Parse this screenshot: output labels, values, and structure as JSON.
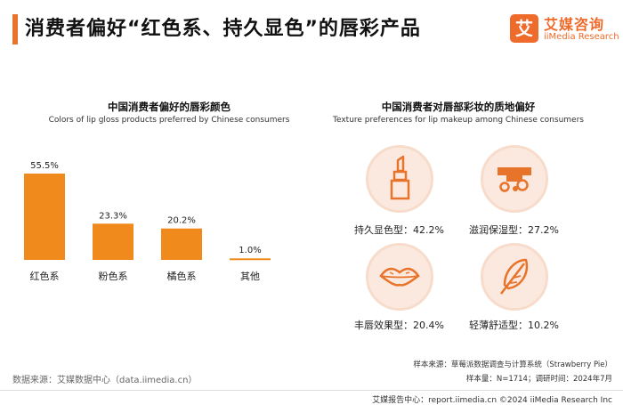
{
  "header": {
    "title": "消费者偏好“红色系、持久显色”的唇彩产品",
    "logo_mark": "艾",
    "logo_cn": "艾媒咨询",
    "logo_en": "iiMedia Research"
  },
  "left_chart": {
    "title_cn": "中国消费者偏好的唇彩颜色",
    "title_en": "Colors of lip gloss products preferred by Chinese consumers"
  },
  "right_panel": {
    "title_cn": "中国消费者对唇部彩妆的质地偏好",
    "title_en": "Texture preferences for lip makeup among Chinese consumers",
    "items": [
      {
        "label": "持久显色型：42.2%",
        "icon": "lipstick-icon"
      },
      {
        "label": "滋润保湿型：27.2%",
        "icon": "lip-gloss-drip-icon"
      },
      {
        "label": "丰唇效果型：20.4%",
        "icon": "lips-icon"
      },
      {
        "label": "轻薄舒适型：10.2%",
        "icon": "feather-icon"
      }
    ]
  },
  "chart_data": {
    "type": "bar",
    "title": "中国消费者偏好的唇彩颜色",
    "subtitle": "Colors of lip gloss products preferred by Chinese consumers",
    "categories": [
      "红色系",
      "粉色系",
      "橘色系",
      "其他"
    ],
    "values": [
      55.5,
      23.3,
      20.2,
      1.0
    ],
    "value_labels": [
      "55.5%",
      "23.3%",
      "20.2%",
      "1.0%"
    ],
    "ylim": [
      0,
      60
    ],
    "grid": false,
    "color": "#f08a1c"
  },
  "texture_data": {
    "categories": [
      "持久显色型",
      "滋润保湿型",
      "丰唇效果型",
      "轻薄舒适型"
    ],
    "values": [
      42.2,
      27.2,
      20.4,
      10.2
    ]
  },
  "footer": {
    "source_left": "数据来源：艾媒数据中心（data.iimedia.cn）",
    "sample_source": "样本来源：草莓派数据调查与计算系统（Strawberry Pie）",
    "sample_info": "样本量：N=1714；调研时间：2024年7月",
    "bottom": "艾媒报告中心：report.iimedia.cn   ©2024  iiMedia Research  Inc"
  },
  "colors": {
    "accent": "#e8732a",
    "bar": "#f08a1c",
    "circle_bg": "#fbe9df",
    "circle_border": "#f8dccb",
    "icon": "#e8732a"
  }
}
